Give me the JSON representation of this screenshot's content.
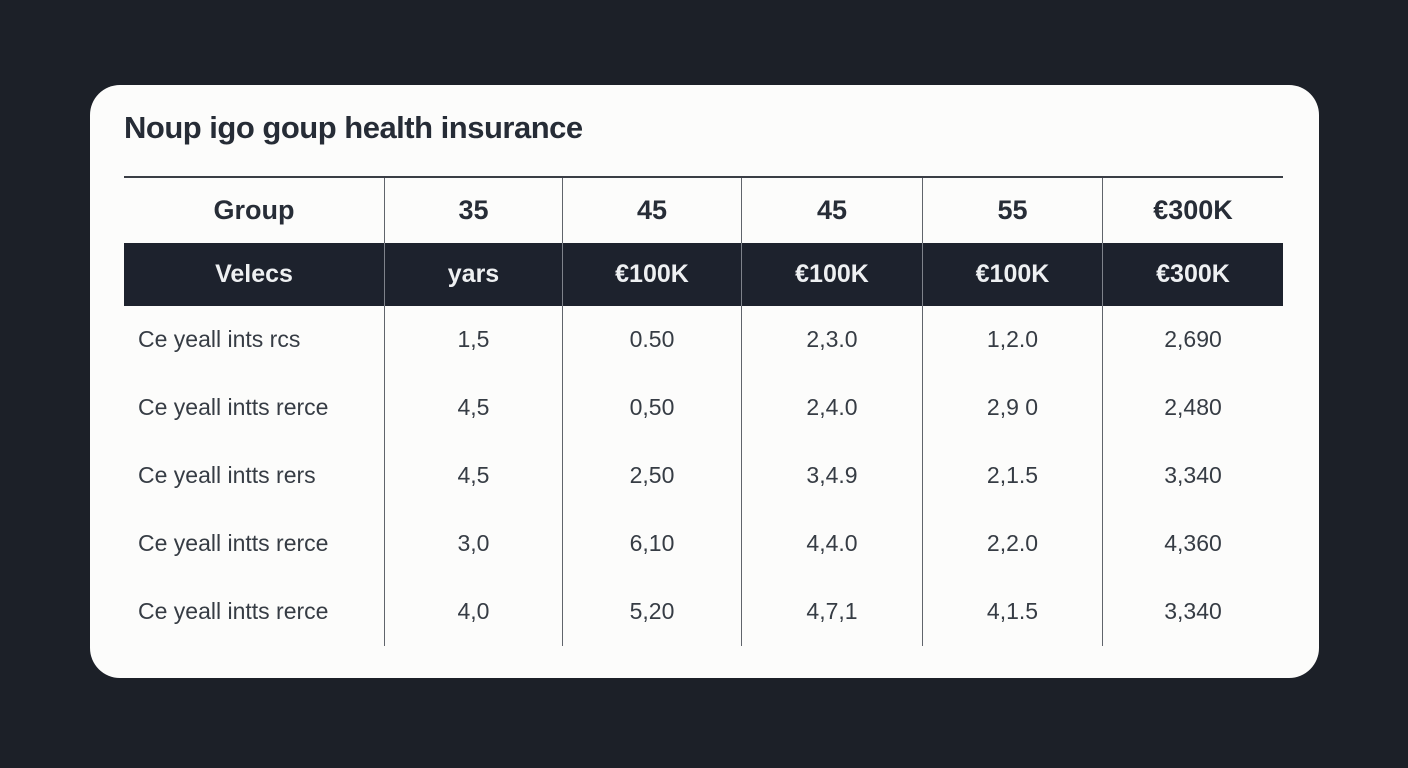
{
  "title": "Noup igo goup health insurance",
  "colors": {
    "page_background": "#1c2028",
    "card_background": "#fcfcfb",
    "dark_header_background": "#1d222d",
    "dark_header_text": "#eef0f2",
    "heading_text": "#262c36",
    "body_text": "#363c44"
  },
  "chart_data": {
    "type": "table",
    "title": "Noup igo goup health insurance",
    "header_rows": [
      [
        "Group",
        "35",
        "45",
        "45",
        "55",
        "€300K"
      ],
      [
        "Velecs",
        "yars",
        "€100K",
        "€100K",
        "€100K",
        "€300K"
      ]
    ],
    "rows": [
      [
        "Ce yeall ints rcs",
        "1,5",
        "0.50",
        "2,3.0",
        "1,2.0",
        "2,690"
      ],
      [
        "Ce yeall intts rerce",
        "4,5",
        "0,50",
        "2,4.0",
        "2,9 0",
        "2,480"
      ],
      [
        "Ce yeall intts rers",
        "4,5",
        "2,50",
        "3,4.9",
        "2,1.5",
        "3,340"
      ],
      [
        "Ce yeall intts rerce",
        "3,0",
        "6,10",
        "4,4.0",
        "2,2.0",
        "4,360"
      ],
      [
        "Ce yeall intts rerce",
        "4,0",
        "5,20",
        "4,7,1",
        "4,1.5",
        "3,340"
      ]
    ],
    "layout": {
      "column_count": 6,
      "first_column_alignment": "left",
      "other_columns_alignment": "center",
      "grid_lines": "vertical-only",
      "header_style": "white-row-above-dark-row"
    }
  }
}
